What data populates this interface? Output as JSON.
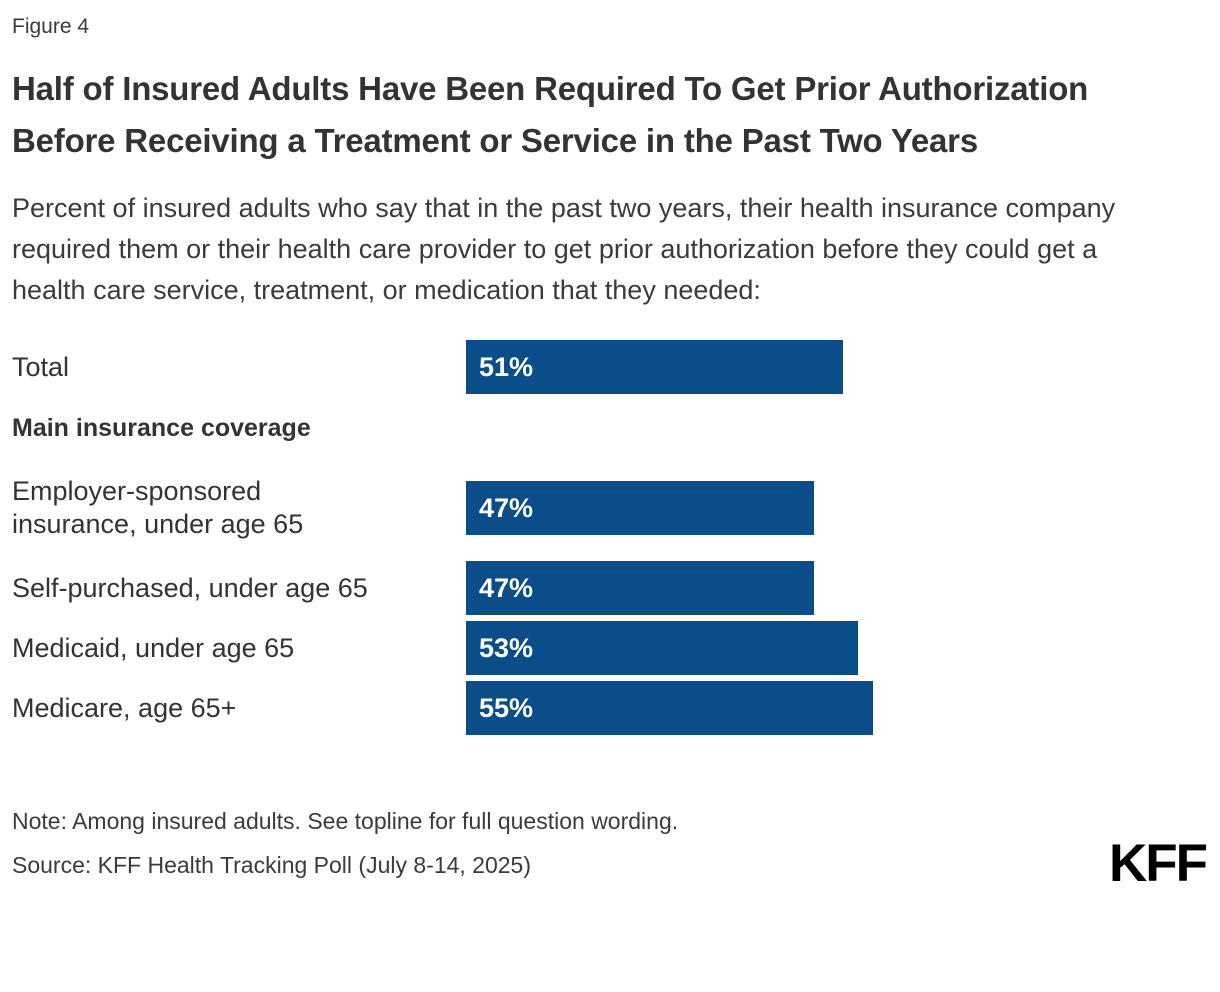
{
  "figure_label": "Figure 4",
  "title": "Half of Insured Adults Have Been Required To Get Prior Authorization Before Receiving a Treatment or Service in the Past Two Years",
  "subtitle": "Percent of insured adults who say that in the past two years, their health insurance company required them or their health care provider to get prior authorization before they could get a health care service, treatment, or medication that they needed:",
  "colors": {
    "bar": "#0b4d89",
    "text": "#333333",
    "value_label": "#ffffff",
    "background": "#ffffff",
    "logo": "#000000"
  },
  "chart_data": {
    "type": "bar",
    "orientation": "horizontal",
    "title": "Half of Insured Adults Have Been Required To Get Prior Authorization Before Receiving a Treatment or Service in the Past Two Years",
    "categories": [
      "Total",
      "Employer-sponsored insurance, under age 65",
      "Self-purchased, under age 65",
      "Medicaid, under age 65",
      "Medicare, age 65+"
    ],
    "display_labels": [
      "Total",
      "Employer-sponsored\ninsurance, under age 65",
      "Self-purchased, under age 65",
      "Medicaid, under age 65",
      "Medicare, age 65+"
    ],
    "values": [
      51,
      47,
      47,
      53,
      55
    ],
    "value_labels": [
      "51%",
      "47%",
      "47%",
      "53%",
      "55%"
    ],
    "group_header": "Main insurance coverage",
    "group_header_after_index": 0,
    "xlim": [
      0,
      100
    ],
    "grid": false,
    "legend": false,
    "bar_color": "#0b4d89",
    "value_label_color": "#ffffff"
  },
  "note": "Note: Among insured adults. See topline for full question wording.",
  "source": "Source: KFF Health Tracking Poll (July 8-14, 2025)",
  "logo": {
    "text": "KFF"
  }
}
